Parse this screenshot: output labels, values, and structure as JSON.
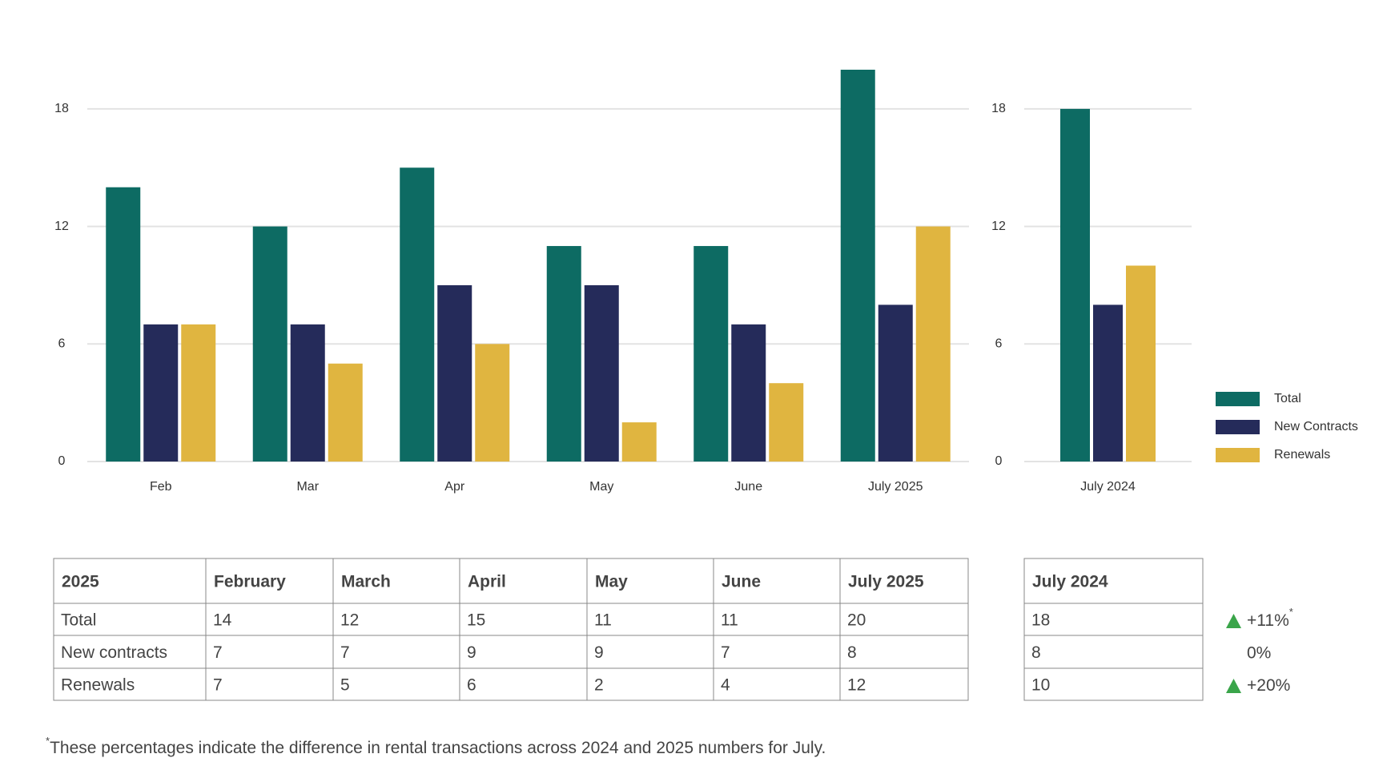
{
  "chart_data": [
    {
      "type": "bar",
      "categories": [
        "Feb",
        "Mar",
        "Apr",
        "May",
        "June",
        "July 2025"
      ],
      "series": [
        {
          "color": "#0d6b63",
          "values": [
            14,
            12,
            15,
            11,
            11,
            20
          ]
        },
        {
          "color": "#252b5a",
          "values": [
            7,
            7,
            9,
            9,
            7,
            8
          ]
        },
        {
          "color": "#e0b540",
          "values": [
            7,
            5,
            6,
            2,
            4,
            12
          ]
        }
      ],
      "ylim": [
        0,
        20
      ],
      "yticks": [
        0,
        6,
        12,
        18
      ],
      "grid": true
    },
    {
      "type": "bar",
      "categories": [
        "July 2024"
      ],
      "series": [
        {
          "name": "Total",
          "color": "#0d6b63",
          "values": [
            18
          ]
        },
        {
          "name": "New Contracts",
          "color": "#252b5a",
          "values": [
            8
          ]
        },
        {
          "name": "Renewals",
          "color": "#e0b540",
          "values": [
            10
          ]
        }
      ],
      "ylim": [
        0,
        20
      ],
      "yticks": [
        0,
        6,
        12,
        18
      ],
      "grid": true,
      "legend": "right"
    }
  ],
  "table": {
    "columns": [
      "2025",
      "February",
      "March",
      "April",
      "May",
      "June",
      "July 2025"
    ],
    "rows": [
      [
        "Total",
        14,
        12,
        15,
        11,
        11,
        20
      ],
      [
        "New contracts",
        7,
        7,
        9,
        9,
        7,
        8
      ],
      [
        "Renewals",
        7,
        5,
        6,
        2,
        4,
        12
      ]
    ]
  },
  "table_2024": {
    "columns": [
      "July 2024"
    ],
    "rows": [
      [
        18
      ],
      [
        8
      ],
      [
        10
      ]
    ]
  },
  "changes": [
    {
      "label": "+11%",
      "note": "*",
      "trend": "up"
    },
    {
      "label": "0%"
    },
    {
      "label": "+20%",
      "trend": "up"
    }
  ],
  "footnote": {
    "mark": "*",
    "text": "These percentages indicate the difference in rental transactions across 2024 and 2025 numbers for July."
  }
}
